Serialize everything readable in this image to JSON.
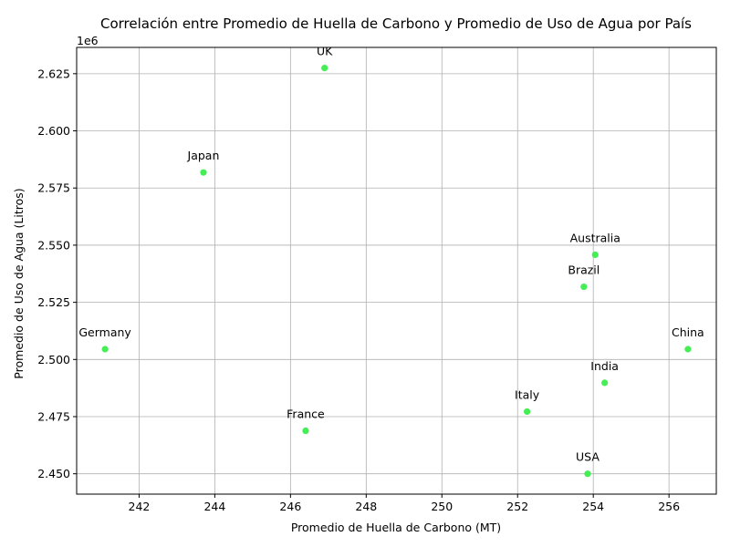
{
  "chart_data": {
    "type": "scatter",
    "title": "Correlación entre Promedio de Huella de Carbono y Promedio de Uso de Agua por País",
    "xlabel": "Promedio de Huella de Carbono (MT)",
    "ylabel": "Promedio de Uso de Agua (Litros)",
    "y_offset_text": "1e6",
    "xlim": [
      240.35,
      257.25
    ],
    "ylim": [
      2.4411,
      2.6365
    ],
    "xticks": [
      242,
      244,
      246,
      248,
      250,
      252,
      254,
      256
    ],
    "xtick_labels": [
      "242",
      "244",
      "246",
      "248",
      "250",
      "252",
      "254",
      "256"
    ],
    "yticks": [
      2.45,
      2.475,
      2.5,
      2.525,
      2.55,
      2.575,
      2.6,
      2.625
    ],
    "ytick_labels": [
      "2.450",
      "2.475",
      "2.500",
      "2.525",
      "2.550",
      "2.575",
      "2.600",
      "2.625"
    ],
    "grid": true,
    "marker_color": "#44ee55",
    "points": [
      {
        "label": "UK",
        "x": 246.9,
        "y": 2.6275
      },
      {
        "label": "Japan",
        "x": 243.7,
        "y": 2.5818
      },
      {
        "label": "Australia",
        "x": 254.05,
        "y": 2.5458
      },
      {
        "label": "Brazil",
        "x": 253.75,
        "y": 2.5318
      },
      {
        "label": "Germany",
        "x": 241.1,
        "y": 2.5045
      },
      {
        "label": "China",
        "x": 256.5,
        "y": 2.5045
      },
      {
        "label": "India",
        "x": 254.3,
        "y": 2.4898
      },
      {
        "label": "Italy",
        "x": 252.25,
        "y": 2.4772
      },
      {
        "label": "France",
        "x": 246.4,
        "y": 2.4688
      },
      {
        "label": "USA",
        "x": 253.85,
        "y": 2.45
      }
    ]
  }
}
